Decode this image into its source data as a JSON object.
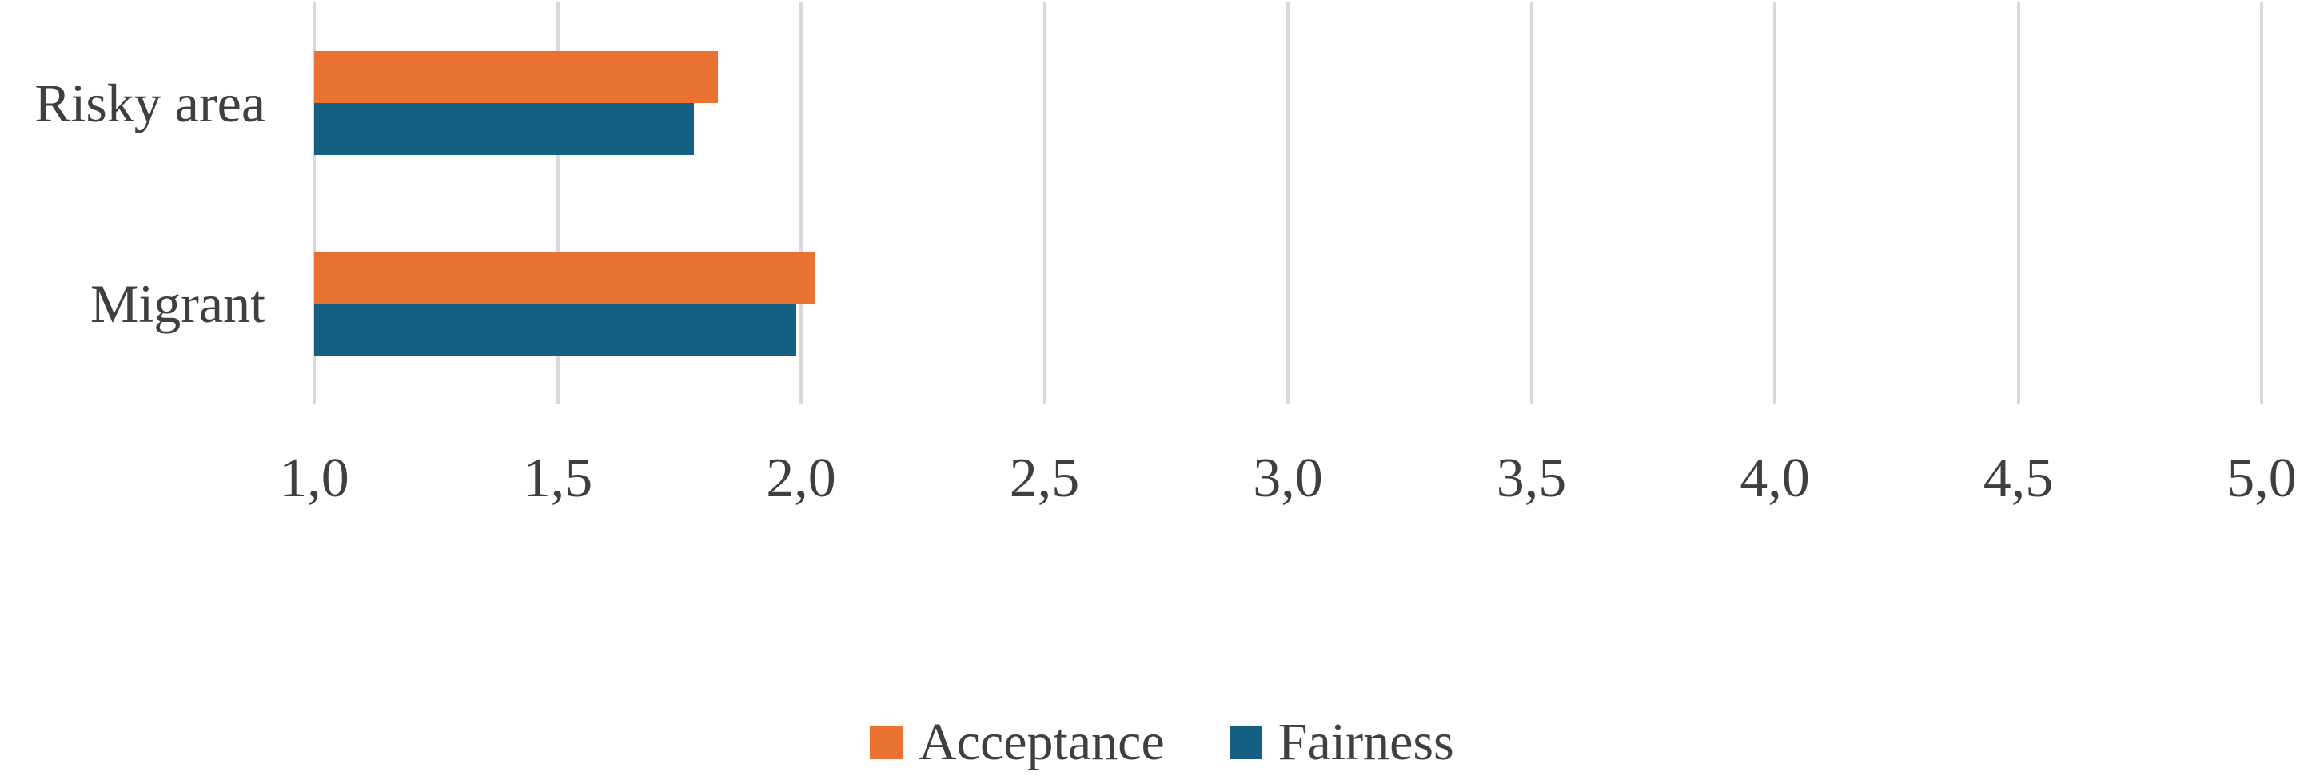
{
  "chart_data": {
    "type": "bar",
    "orientation": "horizontal",
    "title": "",
    "categories": [
      "Risky area",
      "Migrant"
    ],
    "series": [
      {
        "name": "Acceptance",
        "color": "#E97132",
        "values": [
          1.83,
          2.03
        ]
      },
      {
        "name": "Fairness",
        "color": "#156082",
        "values": [
          1.78,
          1.99
        ]
      }
    ],
    "xlim": [
      1.0,
      5.0
    ],
    "x_ticks": [
      {
        "value": 1.0,
        "label": "1,0"
      },
      {
        "value": 1.5,
        "label": "1,5"
      },
      {
        "value": 2.0,
        "label": "2,0"
      },
      {
        "value": 2.5,
        "label": "2,5"
      },
      {
        "value": 3.0,
        "label": "3,0"
      },
      {
        "value": 3.5,
        "label": "3,5"
      },
      {
        "value": 4.0,
        "label": "4,0"
      },
      {
        "value": 4.5,
        "label": "4,5"
      },
      {
        "value": 5.0,
        "label": "5,0"
      }
    ],
    "grid": true,
    "gridline_color": "#D9D9D9",
    "text_color": "#3F3F3F",
    "background_color": "#FFFFFF",
    "legend_position": "bottom",
    "decimal_separator": ","
  }
}
